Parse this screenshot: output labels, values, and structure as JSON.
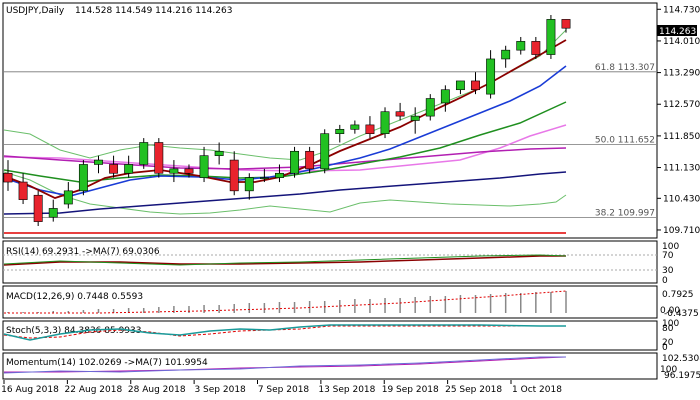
{
  "header": {
    "symbol": "USDJPY,Daily",
    "ohlc": "114.528 114.549 114.216 114.263"
  },
  "price_axis": {
    "ticks": [
      "114.730",
      "114.010",
      "113.290",
      "112.570",
      "111.850",
      "111.130",
      "110.430",
      "109.710"
    ],
    "current_price": "114.263"
  },
  "fib_levels": [
    {
      "label": "61.8 113.307",
      "value": 113.307
    },
    {
      "label": "50.0 111.652",
      "value": 111.652
    },
    {
      "label": "38.2 109.997",
      "value": 109.997
    }
  ],
  "x_axis": {
    "dates": [
      "16 Aug 2018",
      "22 Aug 2018",
      "28 Aug 2018",
      "3 Sep 2018",
      "7 Sep 2018",
      "13 Sep 2018",
      "19 Sep 2018",
      "25 Sep 2018",
      "1 Oct 2018"
    ]
  },
  "panels": {
    "rsi": {
      "label": "RSI(14) 69.2931  ->MA(7) 69.0306",
      "ticks": [
        "100",
        "70",
        "30",
        "0"
      ]
    },
    "macd": {
      "label": "MACD(12,26,9) 0.7448 0.5593",
      "ticks": [
        "0.7925",
        "0.00",
        "-0.4375"
      ]
    },
    "stoch": {
      "label": "Stoch(5,3,3) 84.3836 85.9933",
      "ticks": [
        "100",
        "80",
        "20",
        "0"
      ]
    },
    "momentum": {
      "label": "Momentum(14) 102.0269  ->MA(7) 101.9954",
      "ticks": [
        "102.5308",
        "100",
        "96.1975"
      ]
    }
  },
  "colors": {
    "bull": "#22c022",
    "bear": "#e8232d",
    "ma_dark_red": "#8b0000",
    "ma_blue": "#1a3cd6",
    "ma_green": "#1f8f1f",
    "ma_pink": "#e878e8",
    "ma_magenta": "#b21fb2",
    "ma_navy": "#14147a",
    "band_green": "#6bbf6b",
    "red_line": "#e00000"
  },
  "chart_data": {
    "type": "candlestick",
    "title": "USDJPY,Daily",
    "ylim": [
      109.55,
      114.85
    ],
    "candles": [
      {
        "o": 111.0,
        "h": 111.3,
        "l": 110.6,
        "c": 110.8
      },
      {
        "o": 110.8,
        "h": 111.0,
        "l": 110.3,
        "c": 110.4
      },
      {
        "o": 110.5,
        "h": 110.6,
        "l": 109.8,
        "c": 109.9
      },
      {
        "o": 110.0,
        "h": 110.4,
        "l": 109.9,
        "c": 110.2
      },
      {
        "o": 110.3,
        "h": 110.8,
        "l": 110.2,
        "c": 110.6
      },
      {
        "o": 110.6,
        "h": 111.3,
        "l": 110.5,
        "c": 111.2
      },
      {
        "o": 111.2,
        "h": 111.4,
        "l": 111.0,
        "c": 111.3
      },
      {
        "o": 111.2,
        "h": 111.4,
        "l": 110.9,
        "c": 111.0
      },
      {
        "o": 111.0,
        "h": 111.4,
        "l": 110.9,
        "c": 111.2
      },
      {
        "o": 111.2,
        "h": 111.8,
        "l": 111.1,
        "c": 111.7
      },
      {
        "o": 111.7,
        "h": 111.8,
        "l": 110.9,
        "c": 111.0
      },
      {
        "o": 111.0,
        "h": 111.3,
        "l": 110.8,
        "c": 111.1
      },
      {
        "o": 111.1,
        "h": 111.2,
        "l": 110.9,
        "c": 111.0
      },
      {
        "o": 110.9,
        "h": 111.6,
        "l": 110.8,
        "c": 111.4
      },
      {
        "o": 111.4,
        "h": 111.7,
        "l": 111.2,
        "c": 111.5
      },
      {
        "o": 111.3,
        "h": 111.5,
        "l": 110.5,
        "c": 110.6
      },
      {
        "o": 110.6,
        "h": 111.0,
        "l": 110.4,
        "c": 110.9
      },
      {
        "o": 110.9,
        "h": 111.1,
        "l": 110.8,
        "c": 110.9
      },
      {
        "o": 110.9,
        "h": 111.2,
        "l": 110.8,
        "c": 111.0
      },
      {
        "o": 111.0,
        "h": 111.6,
        "l": 110.9,
        "c": 111.5
      },
      {
        "o": 111.5,
        "h": 111.6,
        "l": 111.0,
        "c": 111.1
      },
      {
        "o": 111.1,
        "h": 112.0,
        "l": 111.0,
        "c": 111.9
      },
      {
        "o": 111.9,
        "h": 112.1,
        "l": 111.7,
        "c": 112.0
      },
      {
        "o": 112.0,
        "h": 112.2,
        "l": 111.9,
        "c": 112.1
      },
      {
        "o": 112.1,
        "h": 112.3,
        "l": 111.8,
        "c": 111.9
      },
      {
        "o": 111.9,
        "h": 112.5,
        "l": 111.8,
        "c": 112.4
      },
      {
        "o": 112.4,
        "h": 112.6,
        "l": 112.2,
        "c": 112.3
      },
      {
        "o": 112.2,
        "h": 112.5,
        "l": 111.9,
        "c": 112.3
      },
      {
        "o": 112.3,
        "h": 112.8,
        "l": 112.2,
        "c": 112.7
      },
      {
        "o": 112.6,
        "h": 113.0,
        "l": 112.4,
        "c": 112.9
      },
      {
        "o": 112.9,
        "h": 113.1,
        "l": 112.8,
        "c": 113.1
      },
      {
        "o": 113.1,
        "h": 113.3,
        "l": 112.8,
        "c": 112.9
      },
      {
        "o": 112.8,
        "h": 113.8,
        "l": 112.7,
        "c": 113.6
      },
      {
        "o": 113.6,
        "h": 113.9,
        "l": 113.4,
        "c": 113.8
      },
      {
        "o": 113.8,
        "h": 114.1,
        "l": 113.7,
        "c": 114.0
      },
      {
        "o": 114.0,
        "h": 114.1,
        "l": 113.6,
        "c": 113.7
      },
      {
        "o": 113.7,
        "h": 114.6,
        "l": 113.6,
        "c": 114.5
      },
      {
        "o": 114.5,
        "h": 114.5,
        "l": 114.2,
        "c": 114.3
      }
    ]
  }
}
